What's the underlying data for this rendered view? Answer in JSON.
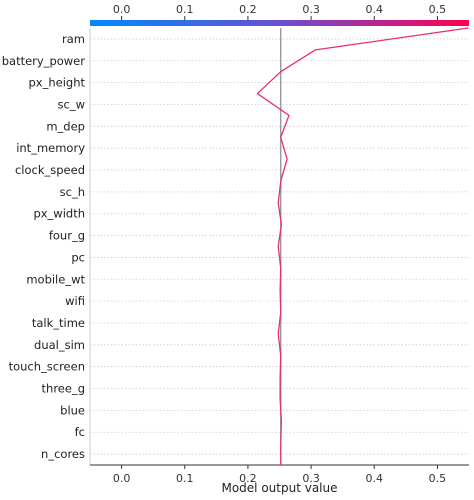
{
  "chart_data": {
    "type": "line",
    "subtype": "shap-decision-plot",
    "xlabel": "Model output value",
    "xlim": [
      -0.05,
      0.55
    ],
    "xticks": [
      0.0,
      0.1,
      0.2,
      0.3,
      0.4,
      0.5
    ],
    "xtick_labels": [
      "0.0",
      "0.1",
      "0.2",
      "0.3",
      "0.4",
      "0.5"
    ],
    "base_value": 0.252,
    "features": [
      "ram",
      "battery_power",
      "px_height",
      "sc_w",
      "m_dep",
      "int_memory",
      "clock_speed",
      "sc_h",
      "px_width",
      "four_g",
      "pc",
      "mobile_wt",
      "wifi",
      "talk_time",
      "dual_sim",
      "touch_screen",
      "three_g",
      "blue",
      "fc",
      "n_cores"
    ],
    "path_x": [
      0.252,
      0.252,
      0.253,
      0.251,
      0.251,
      0.252,
      0.248,
      0.252,
      0.251,
      0.252,
      0.248,
      0.253,
      0.248,
      0.252,
      0.262,
      0.252,
      0.265,
      0.215,
      0.252,
      0.307,
      0.549
    ],
    "colorbar": {
      "colors": [
        "#008afb",
        "#6a4fd1",
        "#ff0051"
      ],
      "range": [
        -0.05,
        0.55
      ]
    },
    "colors": {
      "line": "#e5306c",
      "base_line": "#888888",
      "grid": "#cccccc"
    }
  }
}
